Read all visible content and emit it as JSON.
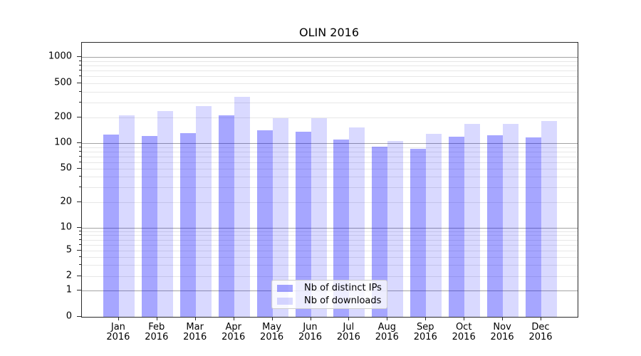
{
  "title": "OLIN 2016",
  "chart_data": {
    "type": "bar",
    "title": "OLIN 2016",
    "categories": [
      "Jan 2016",
      "Feb 2016",
      "Mar 2016",
      "Apr 2016",
      "May 2016",
      "Jun 2016",
      "Jul 2016",
      "Aug 2016",
      "Sep 2016",
      "Oct 2016",
      "Nov 2016",
      "Dec 2016"
    ],
    "series": [
      {
        "name": "Nb of distinct IPs",
        "color": "rgba(0,0,255,0.35)",
        "values": [
          125,
          122,
          132,
          213,
          141,
          137,
          110,
          91,
          85,
          119,
          124,
          116
        ]
      },
      {
        "name": "Nb of downloads",
        "color": "rgba(0,0,255,0.15)",
        "values": [
          212,
          237,
          270,
          348,
          197,
          197,
          153,
          106,
          128,
          167,
          167,
          183
        ]
      }
    ],
    "yscale": "symlog",
    "yticks": [
      0,
      1,
      2,
      5,
      10,
      20,
      50,
      100,
      200,
      500,
      1000
    ],
    "ytick_labels": [
      "0",
      "1",
      "2",
      "5",
      "10",
      "20",
      "50",
      "100",
      "200",
      "500",
      "1000"
    ],
    "ylim": [
      0,
      1460
    ],
    "grid": true,
    "legend_position": "lower center"
  },
  "colors": {
    "grid_major": "#a3a3a3",
    "grid_minor": "#e7e7e7",
    "spine": "#2a2a2a"
  }
}
